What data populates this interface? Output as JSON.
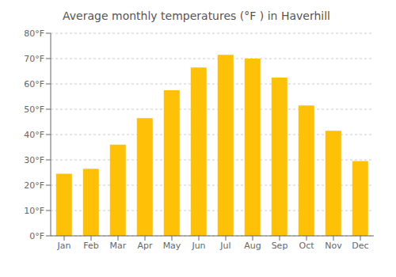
{
  "chart_data": {
    "type": "bar",
    "title": "Average monthly temperatures (°F ) in Haverhill",
    "categories": [
      "Jan",
      "Feb",
      "Mar",
      "Apr",
      "May",
      "Jun",
      "Jul",
      "Aug",
      "Sep",
      "Oct",
      "Nov",
      "Dec"
    ],
    "values": [
      24.5,
      26.5,
      36.0,
      46.5,
      57.5,
      66.5,
      71.5,
      70.0,
      62.5,
      51.5,
      41.5,
      29.5
    ],
    "color": "#FFC107",
    "ylim": [
      0,
      80
    ],
    "yticks": [
      {
        "value": 0,
        "label": "0°F"
      },
      {
        "value": 10,
        "label": "10°F"
      },
      {
        "value": 20,
        "label": "20°F"
      },
      {
        "value": 30,
        "label": "30°F"
      },
      {
        "value": 40,
        "label": "40°F"
      },
      {
        "value": 50,
        "label": "50°F"
      },
      {
        "value": 60,
        "label": "60°F"
      },
      {
        "value": 70,
        "label": "70°F"
      },
      {
        "value": 80,
        "label": "80°F"
      }
    ],
    "grid": true
  }
}
